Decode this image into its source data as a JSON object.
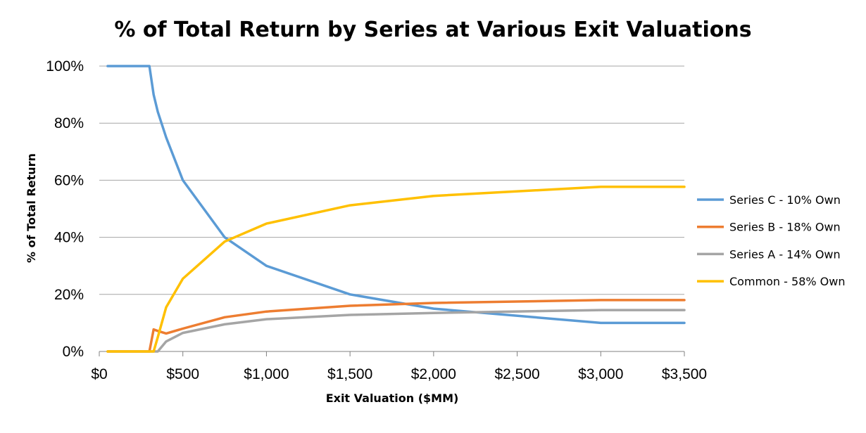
{
  "chart_data": {
    "type": "line",
    "title": "% of Total Return by Series at Various Exit Valuations",
    "xlabel": "Exit Valuation ($MM)",
    "ylabel": "% of Total Return",
    "xlim": [
      0,
      3500
    ],
    "ylim": [
      0,
      100
    ],
    "x_ticks": [
      0,
      500,
      1000,
      1500,
      2000,
      2500,
      3000,
      3500
    ],
    "x_tick_labels": [
      "$0",
      "$500",
      "$1,000",
      "$1,500",
      "$2,000",
      "$2,500",
      "$3,000",
      "$3,500"
    ],
    "y_ticks": [
      0,
      20,
      40,
      60,
      80,
      100
    ],
    "y_tick_labels": [
      "0%",
      "20%",
      "40%",
      "60%",
      "80%",
      "100%"
    ],
    "grid": "horizontal",
    "legend_position": "right",
    "series": [
      {
        "name": "Series C - 10% Own",
        "color": "#5B9BD5",
        "points": [
          [
            50,
            100
          ],
          [
            300,
            100
          ],
          [
            325,
            90
          ],
          [
            350,
            84
          ],
          [
            400,
            75
          ],
          [
            500,
            60
          ],
          [
            750,
            40
          ],
          [
            1000,
            30
          ],
          [
            1500,
            20
          ],
          [
            2000,
            15
          ],
          [
            3000,
            10
          ],
          [
            3500,
            10
          ]
        ]
      },
      {
        "name": "Series B - 18% Own",
        "color": "#ED7D31",
        "points": [
          [
            50,
            0
          ],
          [
            300,
            0
          ],
          [
            325,
            7.7
          ],
          [
            350,
            7.2
          ],
          [
            400,
            6.3
          ],
          [
            500,
            8
          ],
          [
            750,
            12
          ],
          [
            1000,
            14
          ],
          [
            1500,
            16
          ],
          [
            2000,
            17
          ],
          [
            3000,
            18
          ],
          [
            3500,
            18
          ]
        ]
      },
      {
        "name": "Series A - 14% Own",
        "color": "#A5A5A5",
        "points": [
          [
            50,
            0
          ],
          [
            350,
            0
          ],
          [
            400,
            3.5
          ],
          [
            500,
            6.5
          ],
          [
            750,
            9.5
          ],
          [
            1000,
            11.3
          ],
          [
            1500,
            12.8
          ],
          [
            2000,
            13.5
          ],
          [
            3000,
            14.5
          ],
          [
            3500,
            14.5
          ]
        ]
      },
      {
        "name": "Common - 58% Own",
        "color": "#FFC000",
        "points": [
          [
            50,
            0
          ],
          [
            325,
            0
          ],
          [
            350,
            5
          ],
          [
            400,
            15.5
          ],
          [
            500,
            25.5
          ],
          [
            750,
            38.5
          ],
          [
            1000,
            44.8
          ],
          [
            1500,
            51.2
          ],
          [
            2000,
            54.5
          ],
          [
            3000,
            57.7
          ],
          [
            3500,
            57.7
          ]
        ]
      }
    ]
  }
}
